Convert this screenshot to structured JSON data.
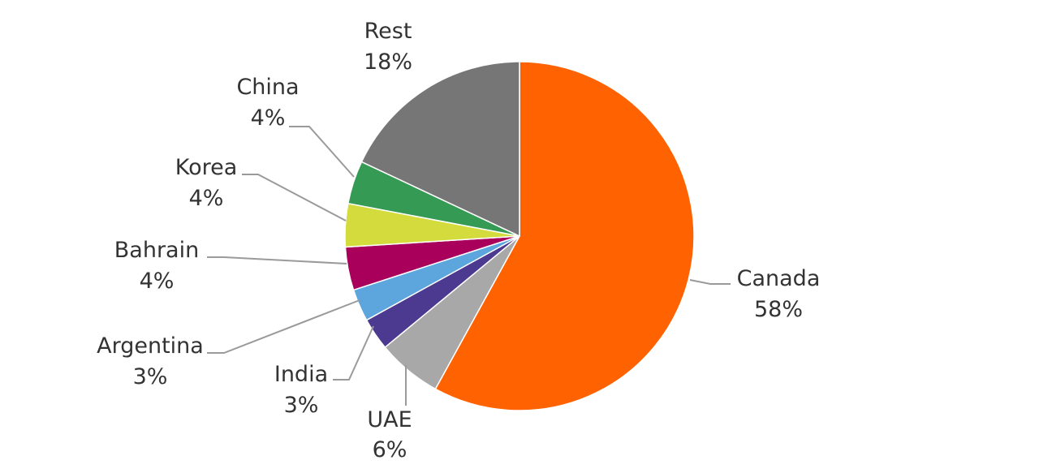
{
  "chart_data": {
    "type": "pie",
    "title": "",
    "start_angle_deg": 0,
    "direction": "clockwise",
    "slices": [
      {
        "label": "Canada",
        "percent_label": "58%",
        "value": 58,
        "color": "#ff6200"
      },
      {
        "label": "UAE",
        "percent_label": "6%",
        "value": 6,
        "color": "#a8a8a8"
      },
      {
        "label": "India",
        "percent_label": "3%",
        "value": 3,
        "color": "#4b3a8f"
      },
      {
        "label": "Argentina",
        "percent_label": "3%",
        "value": 3,
        "color": "#5ca6dd"
      },
      {
        "label": "Bahrain",
        "percent_label": "4%",
        "value": 4,
        "color": "#a8005b"
      },
      {
        "label": "Korea",
        "percent_label": "4%",
        "value": 4,
        "color": "#d3dc3c"
      },
      {
        "label": "China",
        "percent_label": "4%",
        "value": 4,
        "color": "#349a54"
      },
      {
        "label": "Rest",
        "percent_label": "18%",
        "value": 18,
        "color": "#767676"
      }
    ]
  }
}
